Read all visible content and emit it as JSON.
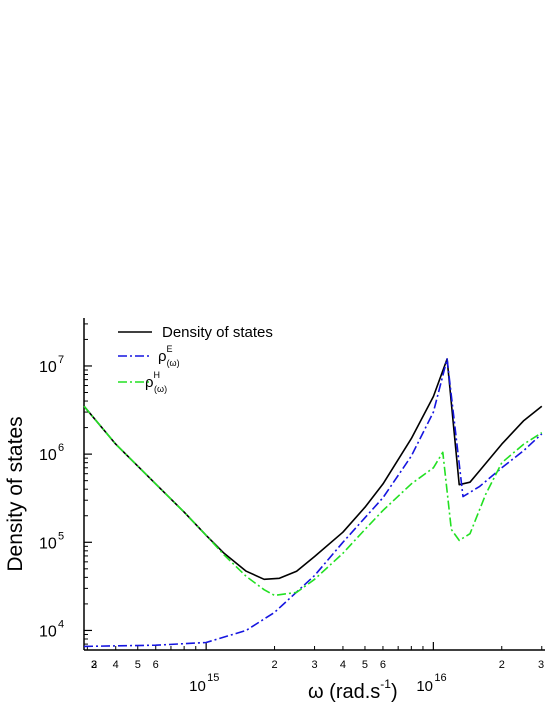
{
  "chart_data": {
    "type": "line",
    "xlabel": "ω (rad.s",
    "xlabel_sup": "-1",
    "xlabel_close": ")",
    "ylabel": "Density of states",
    "x_scale": "log",
    "y_scale": "log",
    "xlim": [
      290000000000000.0,
      3.1e+16
    ],
    "ylim": [
      6000.0,
      35000000.0
    ],
    "x_major_ticks": [
      {
        "value": 1000000000000000.0,
        "base": "10",
        "exp": "15"
      },
      {
        "value": 1e+16,
        "base": "10",
        "exp": "16"
      }
    ],
    "x_minor_ticks": [
      {
        "value": 400000000000000.0,
        "label": "2"
      },
      {
        "value": 600000000000000.0,
        "label": "3"
      },
      {
        "value": 800000000000000.0,
        "label": "4"
      },
      {
        "value": 1000000000000000.0,
        "label": "5"
      },
      {
        "value": 1200000000000000.0,
        "label": "6"
      },
      {
        "value": 2000000000000000.0,
        "label": "2"
      },
      {
        "value": 3000000000000000.0,
        "label": "3"
      },
      {
        "value": 4000000000000000.0,
        "label": "4"
      },
      {
        "value": 5000000000000000.0,
        "label": "5"
      },
      {
        "value": 6000000000000000.0,
        "label": "6"
      },
      {
        "value": 2e+16,
        "label": "2"
      },
      {
        "value": 3e+16,
        "label": "3"
      }
    ],
    "y_major_ticks": [
      {
        "value": 10000.0,
        "base": "10",
        "exp": "4"
      },
      {
        "value": 100000.0,
        "base": "10",
        "exp": "5"
      },
      {
        "value": 1000000.0,
        "base": "10",
        "exp": "6"
      },
      {
        "value": 10000000.0,
        "base": "10",
        "exp": "7"
      }
    ],
    "legend_position": "top-left",
    "series": [
      {
        "name": "Density of states",
        "color": "#000000",
        "style": "solid",
        "x": [
          290000000000000.0,
          400000000000000.0,
          600000000000000.0,
          800000000000000.0,
          1000000000000000.0,
          1200000000000000.0,
          1500000000000000.0,
          1800000000000000.0,
          2100000000000000.0,
          2500000000000000.0,
          3000000000000000.0,
          4000000000000000.0,
          5000000000000000.0,
          6000000000000000.0,
          8000000000000000.0,
          1e+16,
          1.15e+16,
          1.3e+16,
          1.45e+16,
          1.6e+16,
          2e+16,
          2.5e+16,
          3e+16
        ],
        "y": [
          3500000.0,
          1300000.0,
          460000.0,
          220000.0,
          120000.0,
          75000.0,
          47000.0,
          38000.0,
          39000.0,
          47000.0,
          69000.0,
          130000.0,
          250000.0,
          460000.0,
          1500000.0,
          4500000.0,
          12000000.0,
          450000.0,
          480000.0,
          650000.0,
          1300000.0,
          2400000.0,
          3500000.0
        ]
      },
      {
        "name": "ρ",
        "name_sup": "E",
        "name_sub": "(ω)",
        "color": "#1515e0",
        "style": "dashdot",
        "x": [
          290000000000000.0,
          600000000000000.0,
          1000000000000000.0,
          1500000000000000.0,
          2000000000000000.0,
          3000000000000000.0,
          4000000000000000.0,
          5000000000000000.0,
          6000000000000000.0,
          8000000000000000.0,
          1e+16,
          1.15e+16,
          1.35e+16,
          1.6e+16,
          2e+16,
          2.5e+16,
          3e+16
        ],
        "y": [
          6600.0,
          6800.0,
          7300.0,
          10000.0,
          16000.0,
          42000.0,
          100000.0,
          190000.0,
          320000.0,
          950000.0,
          3000000.0,
          12000000.0,
          330000.0,
          430000.0,
          700000.0,
          1100000.0,
          1700000.0
        ]
      },
      {
        "name": "ρ",
        "name_sup": "H",
        "name_sub": "(ω)",
        "color": "#22e022",
        "style": "dashdot",
        "x": [
          290000000000000.0,
          400000000000000.0,
          600000000000000.0,
          800000000000000.0,
          1000000000000000.0,
          1200000000000000.0,
          1500000000000000.0,
          1800000000000000.0,
          2000000000000000.0,
          2500000000000000.0,
          3000000000000000.0,
          4000000000000000.0,
          5000000000000000.0,
          6000000000000000.0,
          8000000000000000.0,
          1e+16,
          1.1e+16,
          1.2e+16,
          1.3e+16,
          1.45e+16,
          1.7e+16,
          2e+16,
          2.5e+16,
          3e+16
        ],
        "y": [
          3500000.0,
          1300000.0,
          460000.0,
          220000.0,
          120000.0,
          72000.0,
          41000.0,
          29000.0,
          25000.0,
          27000.0,
          38000.0,
          75000.0,
          140000.0,
          230000.0,
          460000.0,
          700000.0,
          1050000.0,
          140000.0,
          105000.0,
          125000.0,
          350000.0,
          800000.0,
          1300000.0,
          1750000.0
        ]
      }
    ]
  }
}
